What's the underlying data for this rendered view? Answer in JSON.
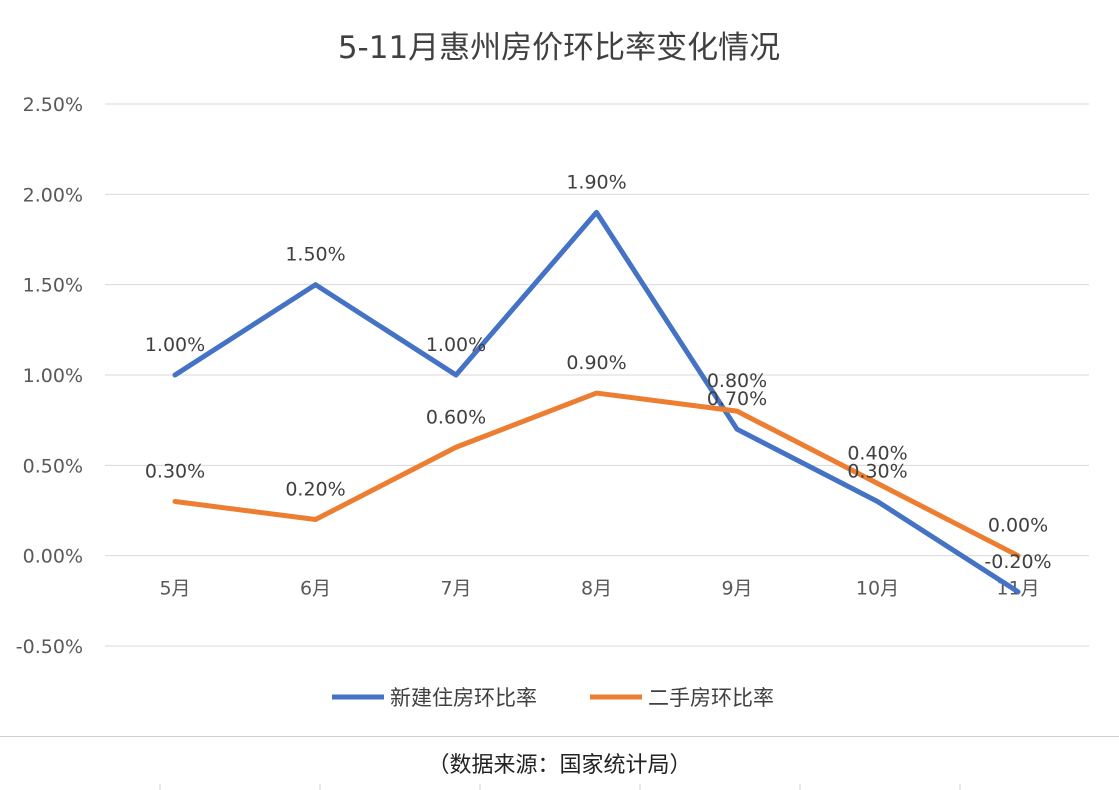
{
  "chart_data": {
    "type": "line",
    "title": "5-11月惠州房价环比率变化情况",
    "categories": [
      "5月",
      "6月",
      "7月",
      "8月",
      "9月",
      "10月",
      "11月"
    ],
    "series": [
      {
        "name": "新建住房环比率",
        "color": "#4472C4",
        "values": [
          1.0,
          1.5,
          1.0,
          1.9,
          0.7,
          0.3,
          -0.2
        ],
        "labels": [
          "1.00%",
          "1.50%",
          "1.00%",
          "1.90%",
          "0.70%",
          "0.30%",
          "-0.20%"
        ]
      },
      {
        "name": "二手房环比率",
        "color": "#ED7D31",
        "values": [
          0.3,
          0.2,
          0.6,
          0.9,
          0.8,
          0.4,
          0.0
        ],
        "labels": [
          "0.30%",
          "0.20%",
          "0.60%",
          "0.90%",
          "0.80%",
          "0.40%",
          "0.00%"
        ]
      }
    ],
    "yticks": [
      "2.50%",
      "2.00%",
      "1.50%",
      "1.00%",
      "0.50%",
      "0.00%",
      "-0.50%"
    ],
    "ylim": [
      -0.5,
      2.5
    ],
    "grid": true,
    "legend_position": "bottom"
  },
  "source": "（数据来源：国家统计局）"
}
